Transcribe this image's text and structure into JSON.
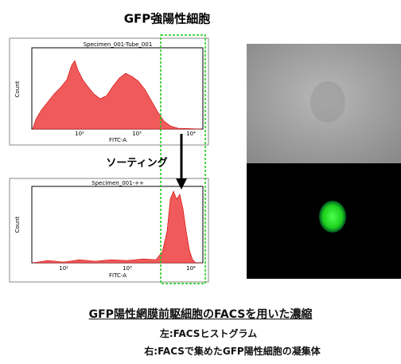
{
  "figure": {
    "title": "GFP強陽性細胞",
    "sort_label": "ソーティング",
    "top_histogram": {
      "header": "Specimen_001-Tube_001",
      "y_label": "Count",
      "x_label": "FITC-A",
      "x_ticks": [
        "10²",
        "10³",
        "10⁴"
      ]
    },
    "bottom_histogram": {
      "header": "Specimen_001-++",
      "y_label": "Count",
      "x_label": "FITC-A",
      "x_ticks": [
        "10²",
        "10³",
        "10⁴"
      ]
    },
    "caption": {
      "main": "GFP陽性網膜前駆細胞のFACSを用いた濃縮",
      "left_note": "左:FACSヒストグラム",
      "right_note": "右:FACSで集めたGFP陽性細胞の凝集体"
    }
  }
}
